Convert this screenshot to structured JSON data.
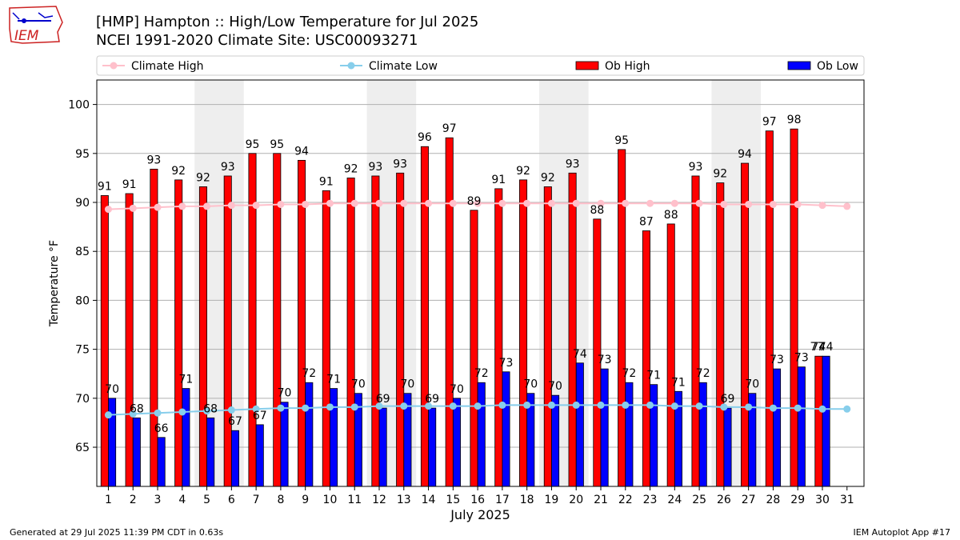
{
  "header": {
    "title_line1": "[HMP] Hampton :: High/Low Temperature for Jul 2025",
    "title_line2": "NCEI 1991-2020 Climate Site: USC00093271"
  },
  "footer": {
    "generated": "Generated at 29 Jul 2025 11:39 PM CDT in 0.63s",
    "app": "IEM Autoplot App #17"
  },
  "logo": {
    "text": "IEM",
    "color": "#cc2222"
  },
  "chart_data": {
    "type": "bar",
    "xlabel": "July 2025",
    "ylabel": "Temperature °F",
    "ylim": [
      61,
      102.5
    ],
    "yticks": [
      65,
      70,
      75,
      80,
      85,
      90,
      95,
      100
    ],
    "grid": true,
    "legend_position": "top",
    "categories": [
      "1",
      "2",
      "3",
      "4",
      "5",
      "6",
      "7",
      "8",
      "9",
      "10",
      "11",
      "12",
      "13",
      "14",
      "15",
      "16",
      "17",
      "18",
      "19",
      "20",
      "21",
      "22",
      "23",
      "24",
      "25",
      "26",
      "27",
      "28",
      "29",
      "30",
      "31"
    ],
    "weekend_shading_days": [
      [
        5,
        6
      ],
      [
        12,
        13
      ],
      [
        19,
        20
      ],
      [
        26,
        27
      ]
    ],
    "series": [
      {
        "name": "Climate High",
        "kind": "line",
        "color": "#ffc0cb",
        "values": [
          89.3,
          89.4,
          89.5,
          89.6,
          89.6,
          89.7,
          89.7,
          89.8,
          89.8,
          89.9,
          89.9,
          89.9,
          89.9,
          89.9,
          89.9,
          89.9,
          89.9,
          89.9,
          89.9,
          89.9,
          89.9,
          89.9,
          89.9,
          89.9,
          89.9,
          89.8,
          89.8,
          89.8,
          89.8,
          89.7,
          89.6
        ]
      },
      {
        "name": "Climate Low",
        "kind": "line",
        "color": "#87ceeb",
        "values": [
          68.3,
          68.4,
          68.5,
          68.6,
          68.7,
          68.8,
          68.9,
          69.0,
          69.0,
          69.1,
          69.1,
          69.2,
          69.2,
          69.2,
          69.2,
          69.2,
          69.3,
          69.3,
          69.3,
          69.3,
          69.3,
          69.3,
          69.3,
          69.2,
          69.2,
          69.1,
          69.1,
          69.0,
          69.0,
          68.9,
          68.9
        ]
      },
      {
        "name": "Ob High",
        "kind": "bar",
        "color": "#ff0000",
        "values": [
          90.7,
          90.9,
          93.4,
          92.3,
          91.6,
          92.7,
          95.0,
          95.0,
          94.3,
          91.2,
          92.5,
          92.7,
          93.0,
          95.7,
          96.6,
          89.2,
          91.4,
          92.3,
          91.6,
          93.0,
          88.3,
          95.4,
          87.1,
          87.8,
          92.7,
          92.0,
          94.0,
          97.3,
          97.5,
          74.3,
          null
        ],
        "labels": [
          "91",
          "91",
          "93",
          "92",
          "92",
          "93",
          "95",
          "95",
          "94",
          "91",
          "92",
          "93",
          "93",
          "96",
          "97",
          "89",
          "91",
          "92",
          "92",
          "93",
          "88",
          "95",
          "87",
          "88",
          "93",
          "92",
          "94",
          "97",
          "98",
          "74",
          ""
        ]
      },
      {
        "name": "Ob Low",
        "kind": "bar",
        "color": "#0000ff",
        "values": [
          70.0,
          68.0,
          66.0,
          71.0,
          68.0,
          66.7,
          67.3,
          69.6,
          71.6,
          71.0,
          70.5,
          69.0,
          70.5,
          69.0,
          70.0,
          71.6,
          72.7,
          70.5,
          70.3,
          73.6,
          73.0,
          71.6,
          71.4,
          70.7,
          71.6,
          69.0,
          70.5,
          73.0,
          73.2,
          74.3,
          null
        ],
        "labels": [
          "70",
          "68",
          "66",
          "71",
          "68",
          "67",
          "67",
          "70",
          "72",
          "71",
          "70",
          "69",
          "70",
          "69",
          "70",
          "72",
          "73",
          "70",
          "70",
          "74",
          "73",
          "72",
          "71",
          "71",
          "72",
          "69",
          "70",
          "73",
          "73",
          "74",
          ""
        ]
      }
    ],
    "overlap_label": "77"
  }
}
